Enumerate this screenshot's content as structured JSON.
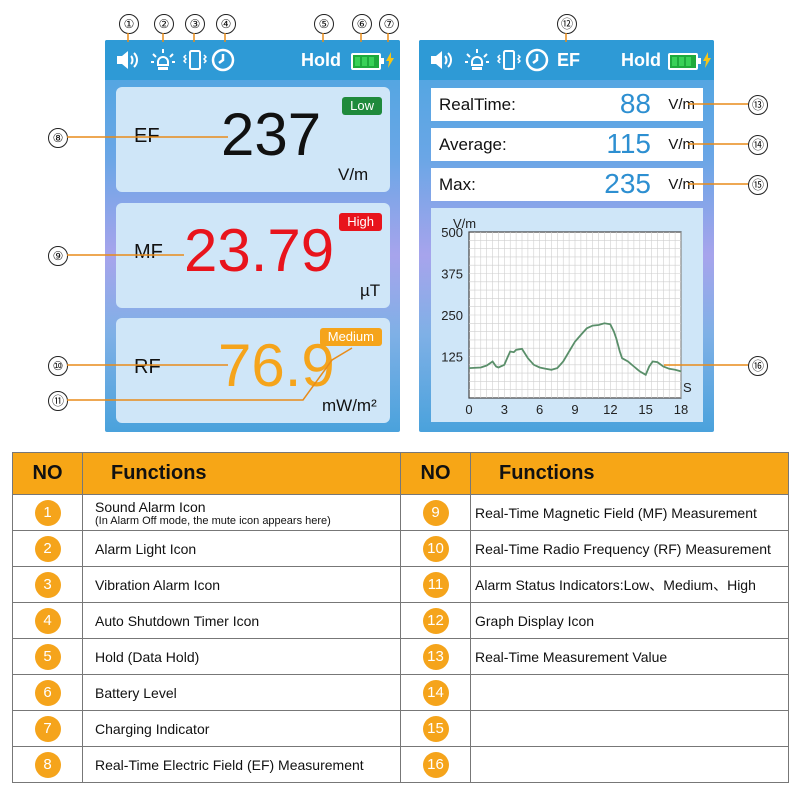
{
  "callouts": [
    "①",
    "②",
    "③",
    "④",
    "⑤",
    "⑥",
    "⑦",
    "⑧",
    "⑨",
    "⑩",
    "⑪",
    "⑫",
    "⑬",
    "⑭",
    "⑮",
    "⑯"
  ],
  "left_screen": {
    "hold": "Hold",
    "ef": {
      "label": "EF",
      "value": "237",
      "unit": "V/m",
      "badge": "Low",
      "badge_color": "#1f8a3c"
    },
    "mf": {
      "label": "MF",
      "value": "23.79",
      "unit": "µT",
      "badge": "High",
      "badge_color": "#e8141c"
    },
    "rf": {
      "label": "RF",
      "value": "76.9",
      "unit": "mW/m²",
      "badge": "Medium",
      "badge_color": "#f5a41b"
    }
  },
  "right_screen": {
    "mode": "EF",
    "hold": "Hold",
    "rows": [
      {
        "label": "RealTime:",
        "value": "88",
        "unit": "V/m"
      },
      {
        "label": "Average:",
        "value": "115",
        "unit": "V/m"
      },
      {
        "label": "Max:",
        "value": "235",
        "unit": "V/m"
      }
    ]
  },
  "chart_data": {
    "type": "line",
    "title": "",
    "xlabel": "S",
    "ylabel": "V/m",
    "xlim": [
      0,
      18
    ],
    "ylim": [
      0,
      500
    ],
    "x_ticks": [
      "0",
      "3",
      "6",
      "9",
      "12",
      "15",
      "18"
    ],
    "y_ticks": [
      "125",
      "250",
      "375",
      "500"
    ],
    "grid": true,
    "series": [
      {
        "color": "#5a8f6a",
        "x": [
          0,
          1,
          1.5,
          2,
          2.3,
          2.5,
          3,
          3.3,
          3.5,
          3.8,
          4,
          4.5,
          5,
          5.5,
          6,
          6.5,
          7,
          7.5,
          8,
          8.5,
          9,
          9.5,
          10,
          10.5,
          11,
          11.5,
          12,
          12.3,
          12.5,
          12.8,
          13,
          13.5,
          14,
          14.5,
          15,
          15.3,
          15.6,
          16,
          16.5,
          17,
          17.5,
          18
        ],
        "y": [
          90,
          92,
          98,
          110,
          95,
          92,
          100,
          125,
          140,
          138,
          145,
          148,
          120,
          100,
          92,
          88,
          85,
          90,
          110,
          140,
          170,
          190,
          210,
          218,
          220,
          225,
          222,
          200,
          180,
          140,
          120,
          110,
          95,
          80,
          70,
          95,
          110,
          108,
          95,
          88,
          85,
          80
        ]
      }
    ]
  },
  "table": {
    "header_no": "NO",
    "header_func": "Functions",
    "left": [
      {
        "n": "1",
        "text": "Sound Alarm Icon",
        "sub": "(In Alarm Off mode, the mute icon appears here)"
      },
      {
        "n": "2",
        "text": "Alarm Light Icon"
      },
      {
        "n": "3",
        "text": "Vibration Alarm Icon"
      },
      {
        "n": "4",
        "text": "Auto Shutdown Timer Icon"
      },
      {
        "n": "5",
        "text": "Hold (Data Hold)"
      },
      {
        "n": "6",
        "text": "Battery Level"
      },
      {
        "n": "7",
        "text": "Charging Indicator"
      },
      {
        "n": "8",
        "text": "Real-Time Electric Field (EF) Measurement"
      }
    ],
    "right": [
      {
        "n": "9",
        "text": "Real-Time Magnetic Field (MF) Measurement"
      },
      {
        "n": "10",
        "text": "Real-Time Radio Frequency (RF) Measurement"
      },
      {
        "n": "11",
        "text": "Alarm Status Indicators:Low、Medium、High"
      },
      {
        "n": "12",
        "text": "Graph Display Icon"
      },
      {
        "n": "13",
        "text": "Real-Time Measurement Value"
      },
      {
        "n": "14",
        "text": ""
      },
      {
        "n": "15",
        "text": ""
      },
      {
        "n": "16",
        "text": ""
      }
    ]
  }
}
